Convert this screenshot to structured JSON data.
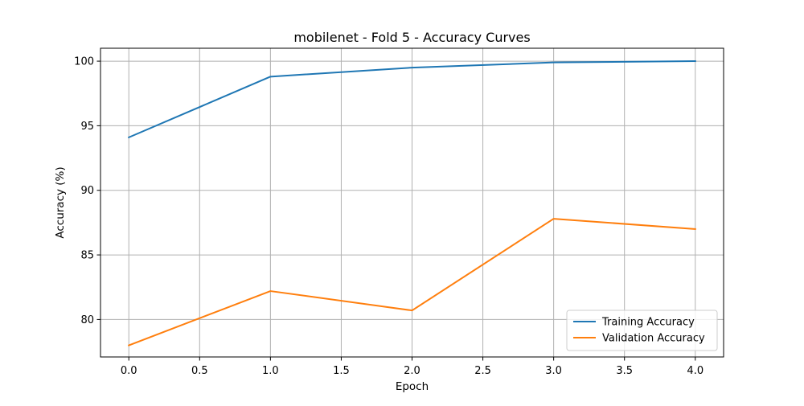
{
  "chart_data": {
    "type": "line",
    "title": "mobilenet - Fold 5 - Accuracy Curves",
    "xlabel": "Epoch",
    "ylabel": "Accuracy (%)",
    "xlim": [
      -0.2,
      4.2
    ],
    "ylim": [
      77.1,
      101.0
    ],
    "xticks": [
      0.0,
      0.5,
      1.0,
      1.5,
      2.0,
      2.5,
      3.0,
      3.5,
      4.0
    ],
    "xtick_labels": [
      "0.0",
      "0.5",
      "1.0",
      "1.5",
      "2.0",
      "2.5",
      "3.0",
      "3.5",
      "4.0"
    ],
    "yticks": [
      80,
      85,
      90,
      95,
      100
    ],
    "ytick_labels": [
      "80",
      "85",
      "90",
      "95",
      "100"
    ],
    "grid": true,
    "legend_position": "lower-right",
    "x": [
      0,
      1,
      2,
      3,
      4
    ],
    "series": [
      {
        "name": "Training Accuracy",
        "color": "#1f77b4",
        "values": [
          94.1,
          98.8,
          99.5,
          99.9,
          100.0
        ]
      },
      {
        "name": "Validation Accuracy",
        "color": "#ff7f0e",
        "values": [
          78.0,
          82.2,
          80.7,
          87.8,
          87.0
        ]
      }
    ]
  }
}
